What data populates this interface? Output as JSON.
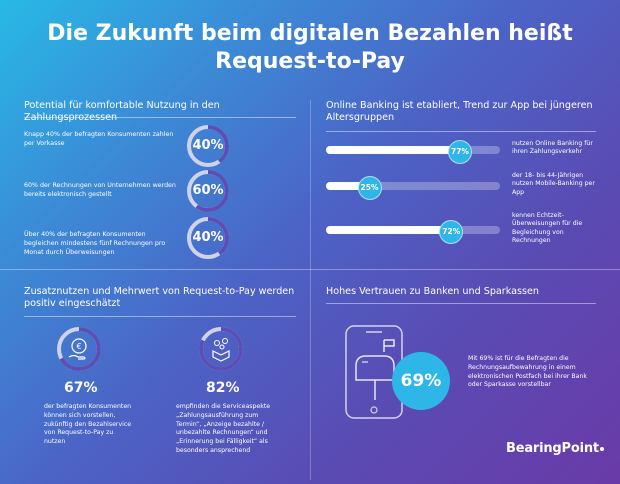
{
  "title": {
    "line1": "Die Zukunft beim digitalen Bezahlen heißt",
    "line2": "Request-to-Pay"
  },
  "colors": {
    "accent": "#2eb6e8",
    "ring_track": "#cfd3ea",
    "ring_fill": "#5b4fb5"
  },
  "sections": {
    "potential": {
      "title": "Potential für komfortable Nutzung in den Zahlungsprozessen",
      "items": [
        {
          "text": "Knapp 40% der befragten Konsumenten zahlen per Vorkasse",
          "value_label": "40%",
          "value": 40
        },
        {
          "text": "60% der Rechnungen von Unternehmen werden bereits elektronisch gestellt",
          "value_label": "60%",
          "value": 60
        },
        {
          "text": "Über 40% der befragten Konsumenten begleichen mindestens fünf Rechnungen pro Monat durch Überweisungen",
          "value_label": "40%",
          "value": 40
        }
      ]
    },
    "online_banking": {
      "title": "Online Banking ist etabliert, Trend zur App bei jüngeren Altersgruppen",
      "items": [
        {
          "value_label": "77%",
          "value": 77,
          "text": "nutzen Online Banking für ihren Zahlungsverkehr"
        },
        {
          "value_label": "25%",
          "value": 25,
          "text": "der 18- bis 44-Jährigen nutzen Mobile-Banking per App"
        },
        {
          "value_label": "72%",
          "value": 72,
          "text": "kennen Echtzeit-Überweisungen für die Begleichung von Rechnungen"
        }
      ]
    },
    "added_value": {
      "title": "Zusatznutzen und Mehrwert von Request-to-Pay werden positiv eingeschätzt",
      "items": [
        {
          "value_label": "67%",
          "value": 67,
          "icon": "euro-coin-icon",
          "text": "der befragten Konsumenten können sich vorstellen, zukünftig den Bezahlservice von Request-to-Pay zu nutzen"
        },
        {
          "value_label": "82%",
          "value": 82,
          "icon": "open-box-icon",
          "text": "empfinden die Serviceaspekte „Zahlungsausführung zum Termin“, „Anzeige bezahlte / unbezahlte Rechnungen“ und „Erinnerung bei Fälligkeit“ als besonders ansprechend"
        }
      ]
    },
    "trust": {
      "title": "Hohes Vertrauen zu Banken und Sparkassen",
      "value_label": "69%",
      "icon": "phone-mailbox-icon",
      "text": "Mit 69% ist für die Befragten die Rechnungsaufbewahrung in einem elektronischen Postfach bei ihrer Bank oder Sparkasse vorstellbar"
    }
  },
  "logo": {
    "text": "BearingPoint"
  }
}
